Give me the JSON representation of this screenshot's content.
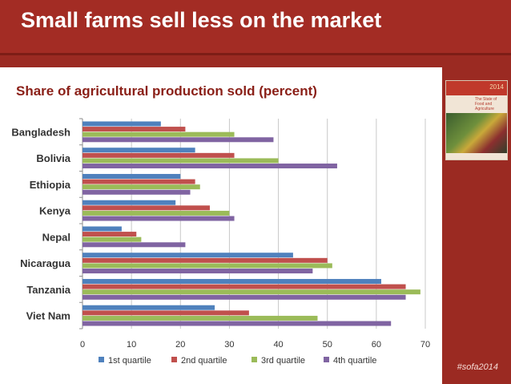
{
  "slide": {
    "title": "Small farms sell less on the market",
    "subtitle": "Share of agricultural production sold (percent)",
    "hashtag": "#sofa2014",
    "cover_year": "2014",
    "cover_title": "The State of Food and Agriculture"
  },
  "colors": {
    "background": "#9b2a22",
    "q1": "#4f81bd",
    "q2": "#c0504d",
    "q3": "#9bbb59",
    "q4": "#8064a2"
  },
  "chart_data": {
    "type": "bar",
    "orientation": "horizontal",
    "categories": [
      "Bangladesh",
      "Bolivia",
      "Ethiopia",
      "Kenya",
      "Nepal",
      "Nicaragua",
      "Tanzania",
      "Viet Nam"
    ],
    "series": [
      {
        "name": "1st quartile",
        "values": [
          16,
          23,
          20,
          19,
          8,
          43,
          61,
          27
        ]
      },
      {
        "name": "2nd quartile",
        "values": [
          21,
          31,
          23,
          26,
          11,
          50,
          66,
          34
        ]
      },
      {
        "name": "3rd quartile",
        "values": [
          31,
          40,
          24,
          30,
          12,
          51,
          69,
          48
        ]
      },
      {
        "name": "4th quartile",
        "values": [
          39,
          52,
          22,
          31,
          21,
          47,
          66,
          63
        ]
      }
    ],
    "xlim": [
      0,
      70
    ],
    "xticks": [
      "0",
      "10",
      "20",
      "30",
      "40",
      "50",
      "60",
      "70"
    ],
    "grid": true,
    "legend_position": "bottom"
  }
}
